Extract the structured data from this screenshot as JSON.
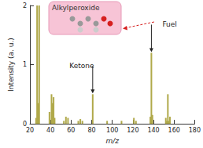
{
  "chart_data": {
    "type": "bar",
    "x_label": "m/z",
    "y_label": "Intensity (a. u.)",
    "x": [
      26,
      27,
      28,
      29,
      39,
      41,
      42,
      43,
      44,
      53,
      55,
      57,
      67,
      69,
      71,
      81,
      95,
      109,
      121,
      123,
      137,
      138,
      139,
      152,
      153,
      154,
      155,
      156
    ],
    "values": [
      0.1,
      2.0,
      0.35,
      2.0,
      0.2,
      0.5,
      0.35,
      0.45,
      0.1,
      0.05,
      0.12,
      0.1,
      0.05,
      0.08,
      0.05,
      0.5,
      0.05,
      0.05,
      0.1,
      0.05,
      0.12,
      1.2,
      0.15,
      0.1,
      0.05,
      0.5,
      0.05,
      0.12
    ],
    "color": "#b0a94a",
    "xlim": [
      20,
      180
    ],
    "xticks": [
      20,
      40,
      60,
      80,
      100,
      120,
      140,
      160,
      180
    ],
    "ylim": [
      0,
      2
    ],
    "yticks": [
      0,
      1,
      2
    ],
    "grid": false,
    "annotations": [
      {
        "text": "Alkylperoxide"
      },
      {
        "text": "Fuel",
        "x": 138,
        "y": 1.2
      },
      {
        "text": "Ketone",
        "x": 81,
        "y": 0.5
      }
    ]
  }
}
